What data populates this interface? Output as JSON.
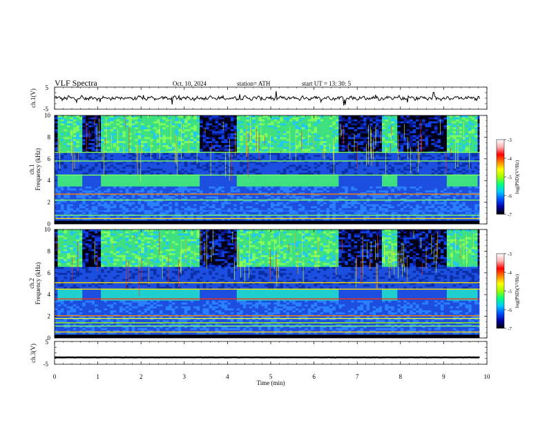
{
  "header": {
    "title": "VLF  Spectra",
    "date": "Oct. 10, 2024",
    "station": "station= ATH",
    "start": "start  UT  =    13: 30: 5"
  },
  "chart_data": {
    "type": "heatmap",
    "x": {
      "label": "Time  (min)",
      "range": [
        0,
        10
      ],
      "ticks": [
        "0",
        "1",
        "2",
        "3",
        "4",
        "5",
        "6",
        "7",
        "8",
        "9",
        "10"
      ]
    },
    "panels": [
      {
        "id": "ch1_voltage",
        "type": "line",
        "ylabel": "ch.1(V)",
        "ylim": [
          -5,
          5
        ],
        "yticks": [
          "5",
          "-5"
        ],
        "baseline": 0,
        "data_end_min": 9.83
      },
      {
        "id": "ch1_spectrogram",
        "type": "heatmap",
        "ylabel_line1": "ch.1",
        "ylabel_line2": "Frequency  (kHz)",
        "ylim": [
          0,
          10
        ],
        "yticks": [
          "0",
          "2",
          "4",
          "6",
          "8",
          "10"
        ],
        "colorbar": {
          "label": "log(PSD)(V²/Hz)",
          "range": [
            -7,
            -3
          ],
          "ticks": [
            "-3",
            "-4",
            "-5",
            "-6",
            "-7"
          ],
          "colors": [
            "#000000",
            "#0000a0",
            "#0050ff",
            "#00c8ff",
            "#00ff80",
            "#a0ff00",
            "#ffff00",
            "#ff8000",
            "#ff0000",
            "#ffb0b0",
            "#ffffff"
          ]
        },
        "quiet_intervals_min": [
          [
            0.1,
            0.65
          ],
          [
            1.05,
            3.35
          ],
          [
            4.2,
            6.55
          ],
          [
            7.6,
            7.95
          ],
          [
            9.05,
            9.8
          ]
        ]
      },
      {
        "id": "ch2_spectrogram",
        "type": "heatmap",
        "ylabel_line1": "ch.2",
        "ylabel_line2": "Frequency  (kHz)",
        "ylim": [
          0,
          10
        ],
        "yticks": [
          "0",
          "2",
          "4",
          "6",
          "8",
          "10"
        ],
        "colorbar": {
          "label": "log(PSD)(V²/Hz)",
          "range": [
            -7,
            -3
          ],
          "ticks": [
            "-3",
            "-4",
            "-5",
            "-6",
            "-7"
          ]
        },
        "quiet_intervals_min": [
          [
            0.1,
            0.65
          ],
          [
            1.05,
            3.35
          ],
          [
            4.2,
            6.55
          ],
          [
            7.6,
            7.95
          ],
          [
            9.05,
            9.8
          ]
        ]
      },
      {
        "id": "ch3_voltage",
        "type": "line",
        "ylabel": "ch.3(V)",
        "ylim": [
          -5,
          5
        ],
        "yticks": [
          "5",
          "-5"
        ],
        "baseline": -2,
        "data_end_min": 9.83
      }
    ]
  }
}
